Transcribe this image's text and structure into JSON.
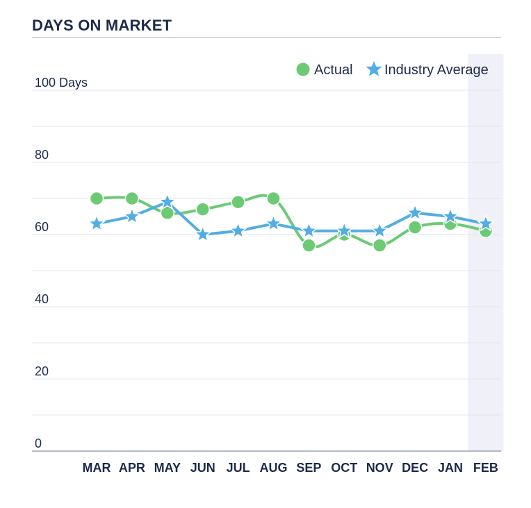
{
  "chart_data": {
    "type": "line",
    "title": "DAYS ON MARKET",
    "y_unit_label": "100 Days",
    "categories": [
      "MAR",
      "APR",
      "MAY",
      "JUN",
      "JUL",
      "AUG",
      "SEP",
      "OCT",
      "NOV",
      "DEC",
      "JAN",
      "FEB"
    ],
    "ylim": [
      0,
      100
    ],
    "y_ticks": [
      "0",
      "20",
      "40",
      "60",
      "80"
    ],
    "grid": true,
    "legend_position": "top-right",
    "highlighted_category": "FEB",
    "series": [
      {
        "name": "Actual",
        "marker": "circle",
        "color": "#6cca74",
        "values": [
          70,
          70,
          66,
          67,
          69,
          70,
          57,
          60,
          57,
          62,
          63,
          61
        ]
      },
      {
        "name": "Industry Average",
        "marker": "star",
        "color": "#52ade3",
        "values": [
          63,
          65,
          69,
          60,
          61,
          63,
          61,
          61,
          61,
          66,
          65,
          63
        ]
      }
    ]
  }
}
